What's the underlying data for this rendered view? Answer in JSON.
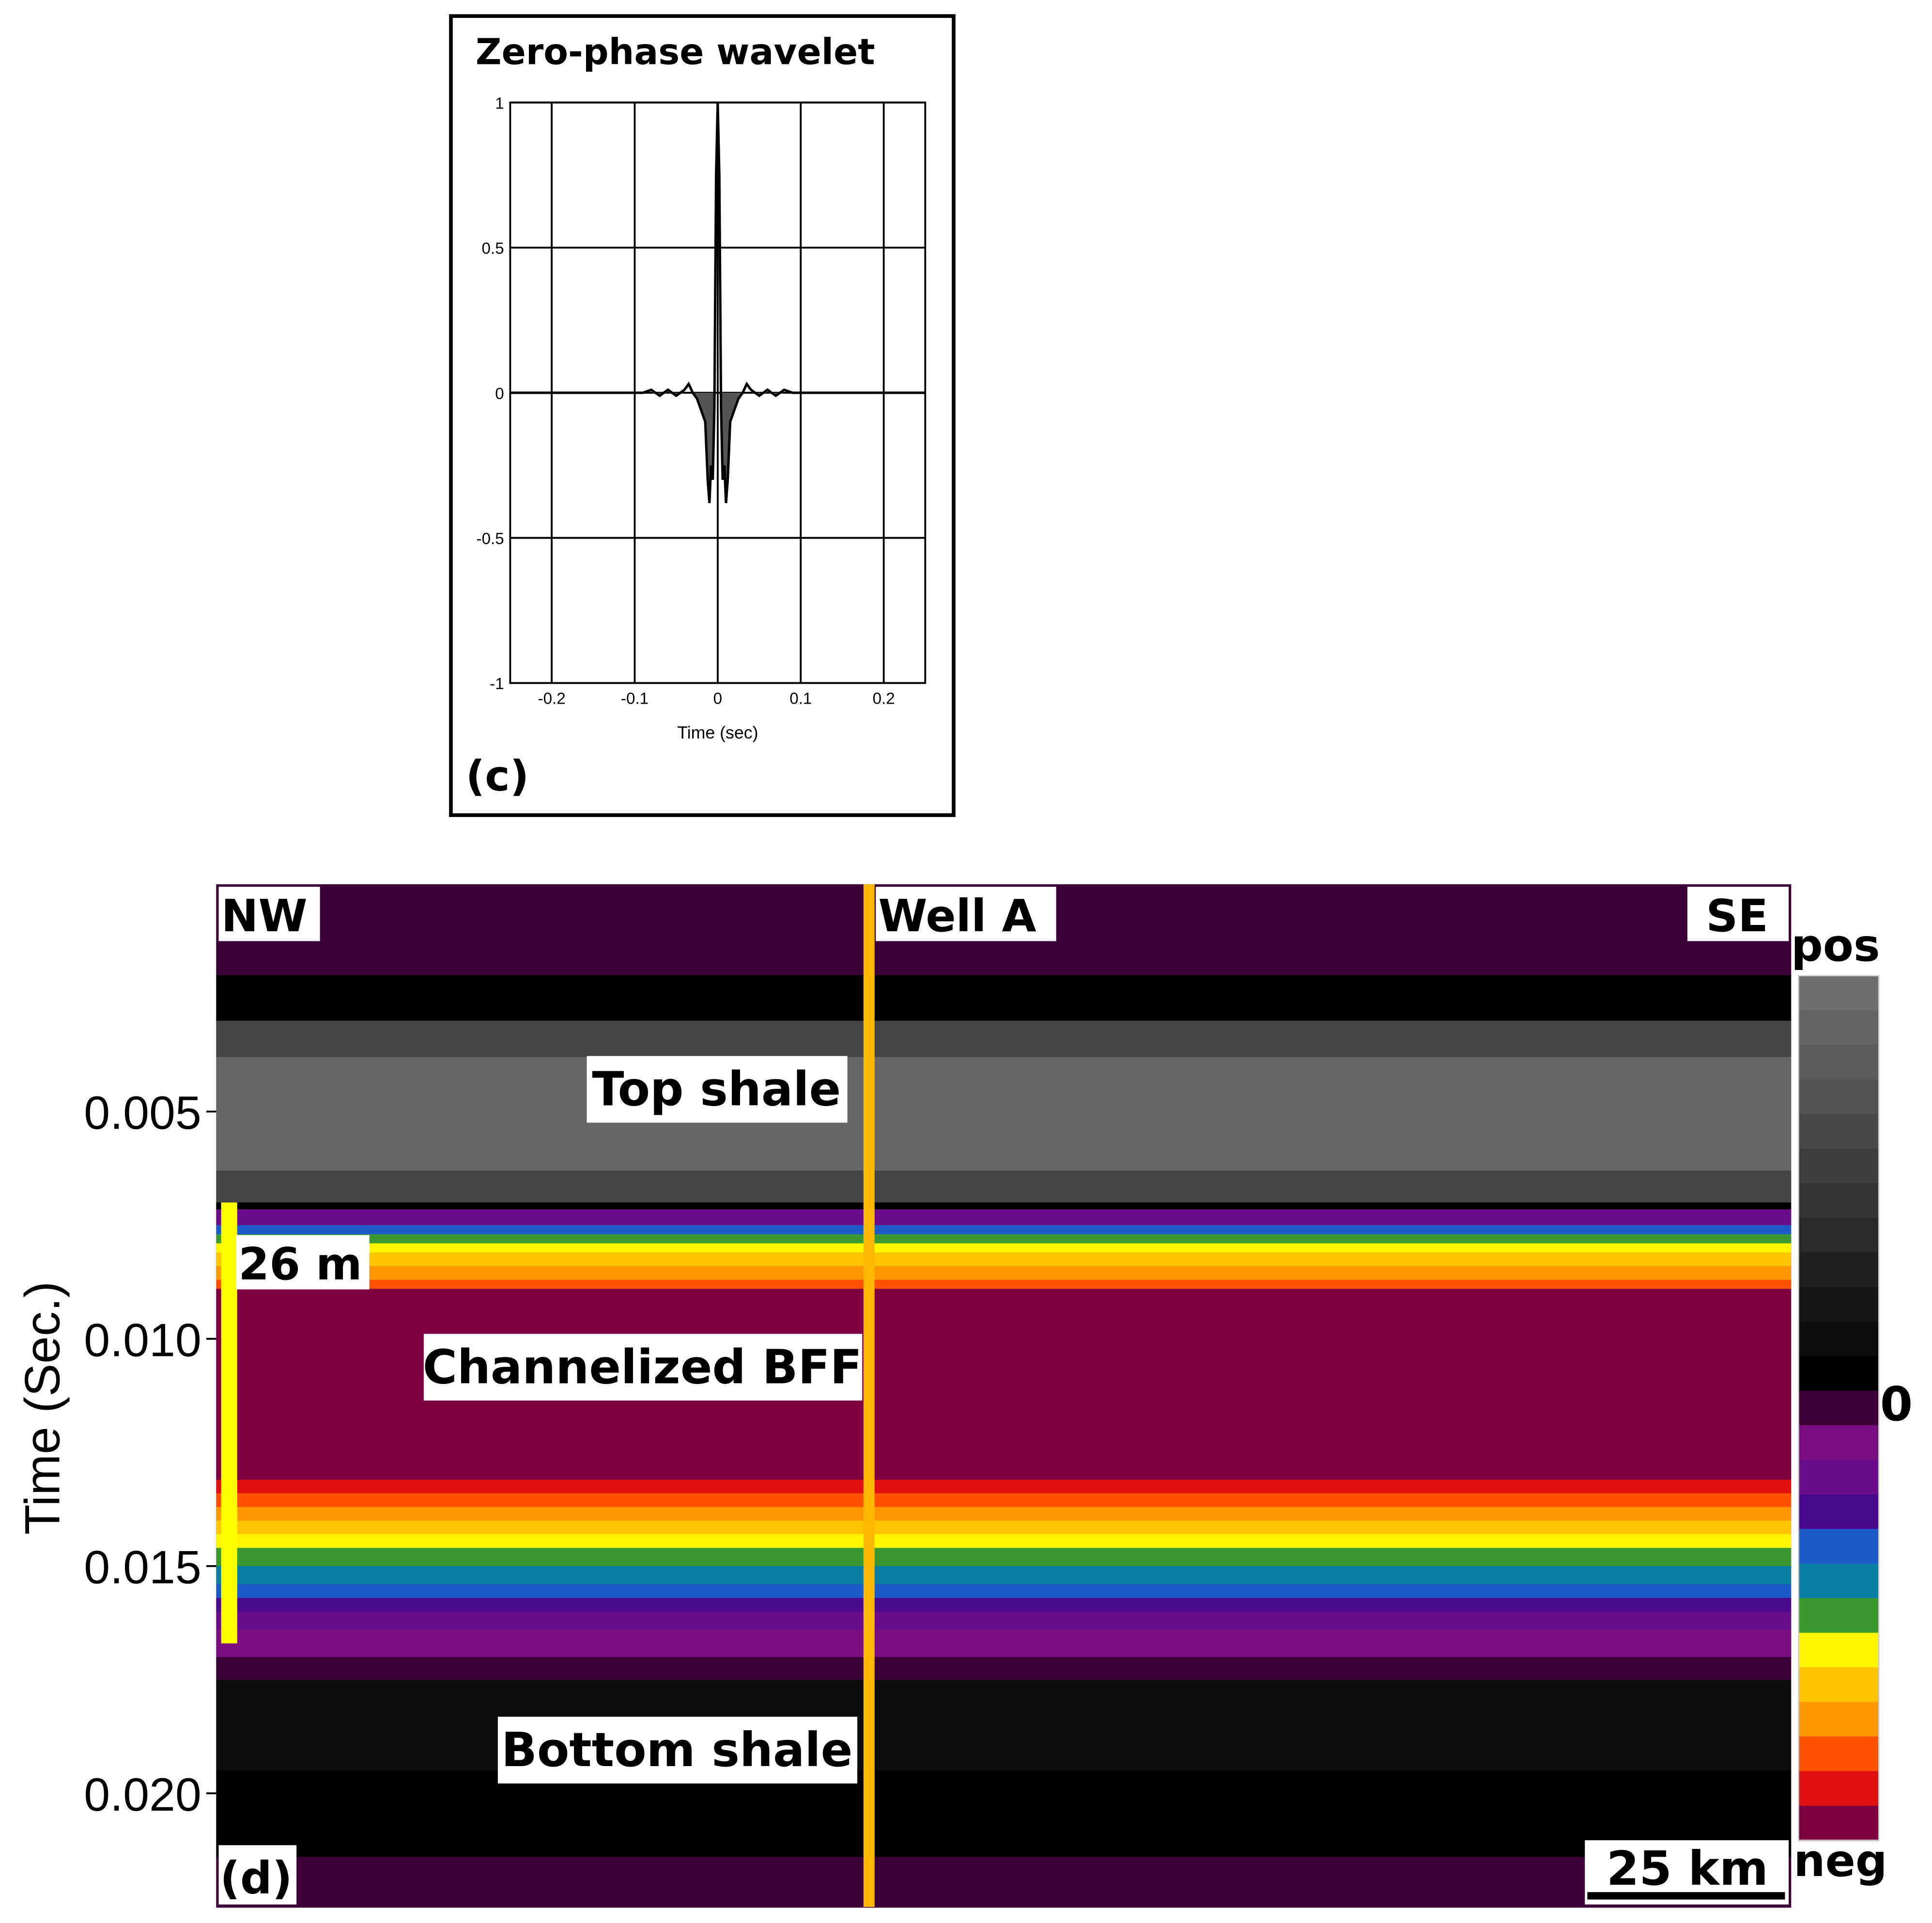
{
  "chart_data": [
    {
      "panel": "(c)",
      "type": "line",
      "title": "Zero-phase wavelet",
      "xlabel": "Time (sec)",
      "ylabel": "",
      "xlim": [
        -0.25,
        0.25
      ],
      "ylim": [
        -1,
        1
      ],
      "x_ticks": [
        "-0.2",
        "-0.1",
        "0",
        "0.1",
        "0.2"
      ],
      "y_ticks": [
        "1",
        "0.5",
        "0",
        "-0.5",
        "-1"
      ],
      "grid": true,
      "series": [
        {
          "x": [
            -0.25,
            -0.09,
            -0.08,
            -0.07,
            -0.06,
            -0.05,
            -0.04,
            -0.035,
            -0.03,
            -0.025,
            -0.02,
            -0.015,
            -0.012,
            -0.01,
            -0.008,
            -0.006,
            -0.004,
            -0.002,
            0,
            0.002,
            0.004,
            0.006,
            0.008,
            0.01,
            0.012,
            0.015,
            0.02,
            0.025,
            0.03,
            0.035,
            0.04,
            0.05,
            0.06,
            0.07,
            0.08,
            0.09,
            0.25
          ],
          "y": [
            0,
            0,
            0.01,
            -0.01,
            0.01,
            -0.01,
            0.01,
            0.03,
            0.0,
            -0.02,
            -0.06,
            -0.1,
            -0.3,
            -0.38,
            -0.25,
            -0.3,
            -0.05,
            0.75,
            1.0,
            0.75,
            -0.05,
            -0.3,
            -0.25,
            -0.38,
            -0.3,
            -0.1,
            -0.06,
            -0.02,
            0.0,
            0.03,
            0.01,
            -0.01,
            0.01,
            -0.01,
            0.01,
            0,
            0
          ]
        }
      ]
    },
    {
      "panel": "(d)",
      "type": "heatmap",
      "ylabel": "Time (Sec.)",
      "y_ticks": [
        "0.005",
        "0.010",
        "0.015",
        "0.020"
      ],
      "ylim": [
        0,
        0.0225
      ],
      "labels": {
        "left": "NW",
        "well": "Well A",
        "right": "SE",
        "thickness": "26 m",
        "top_unit": "Top shale",
        "mid_unit": "Channelized BFF",
        "bottom_unit": "Bottom shale",
        "scalebar": "25 km"
      },
      "colorbar": {
        "top": "pos",
        "mid": "0",
        "bottom": "neg",
        "colors": [
          "#6e6e6e",
          "#656565",
          "#5c5c5c",
          "#525252",
          "#484848",
          "#3e3e3e",
          "#343434",
          "#2a2a2a",
          "#202020",
          "#161616",
          "#0c0c0c",
          "#000000",
          "#3d0038",
          "#7b0e82",
          "#6a0d8a",
          "#4a088f",
          "#1d5bc9",
          "#0a7ea3",
          "#3a9a30",
          "#fff600",
          "#ffc400",
          "#ff9800",
          "#ff5300",
          "#e01010",
          "#7e0040"
        ]
      },
      "layers": [
        {
          "t": 0.0,
          "color": "#3d0038"
        },
        {
          "t": 0.002,
          "color": "#000000"
        },
        {
          "t": 0.003,
          "color": "#444444"
        },
        {
          "t": 0.0038,
          "color": "#666666"
        },
        {
          "t": 0.0055,
          "color": "#666666"
        },
        {
          "t": 0.0063,
          "color": "#444444"
        },
        {
          "t": 0.007,
          "color": "#000000"
        },
        {
          "t": 0.00715,
          "color": "#6a0d8a"
        },
        {
          "t": 0.0075,
          "color": "#1d5bc9"
        },
        {
          "t": 0.0077,
          "color": "#3a9a30"
        },
        {
          "t": 0.0079,
          "color": "#fff600"
        },
        {
          "t": 0.0081,
          "color": "#ffc400"
        },
        {
          "t": 0.0084,
          "color": "#ff9800"
        },
        {
          "t": 0.0087,
          "color": "#ff5300"
        },
        {
          "t": 0.0089,
          "color": "#7e0040"
        },
        {
          "t": 0.0131,
          "color": "#e01010"
        },
        {
          "t": 0.0134,
          "color": "#ff5300"
        },
        {
          "t": 0.0137,
          "color": "#ff9800"
        },
        {
          "t": 0.014,
          "color": "#ffc400"
        },
        {
          "t": 0.0143,
          "color": "#fff600"
        },
        {
          "t": 0.0146,
          "color": "#3a9a30"
        },
        {
          "t": 0.015,
          "color": "#0a7ea3"
        },
        {
          "t": 0.0154,
          "color": "#1d5bc9"
        },
        {
          "t": 0.0157,
          "color": "#4a088f"
        },
        {
          "t": 0.016,
          "color": "#6a0d8a"
        },
        {
          "t": 0.0164,
          "color": "#7b0e82"
        },
        {
          "t": 0.017,
          "color": "#3d0038"
        },
        {
          "t": 0.0175,
          "color": "#0d0d0d"
        },
        {
          "t": 0.0195,
          "color": "#000000"
        },
        {
          "t": 0.0214,
          "color": "#3d0038"
        }
      ],
      "thickness_marker": {
        "t_top": 0.007,
        "t_bottom": 0.0167
      },
      "well_position": 0.415
    }
  ]
}
